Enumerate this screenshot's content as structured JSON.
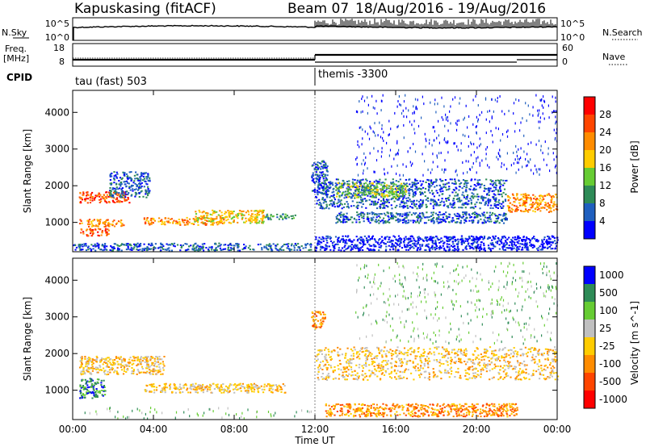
{
  "header": {
    "station": "Kapuskasing (fitACF)",
    "beam": "Beam 07",
    "date_range": "18/Aug/2016 - 19/Aug/2016"
  },
  "noise_panel": {
    "left_label": "N.Sky",
    "left_ticks": [
      "10^5",
      "10^0"
    ],
    "right_label": "N.Search",
    "right_ticks": [
      "10^5",
      "10^0"
    ]
  },
  "freq_panel": {
    "left_label_1": "Freq.",
    "left_label_2": "[MHz]",
    "left_ticks": [
      "18",
      "8"
    ],
    "right_label": "Nave",
    "right_ticks": [
      "60",
      "0"
    ]
  },
  "cpid": {
    "label": "CPID",
    "segments": [
      {
        "name": "tau (fast) 503",
        "start_hour": 0
      },
      {
        "name": "themis -3300",
        "start_hour": 12
      }
    ]
  },
  "colors": {
    "power": [
      "#0000ff",
      "#1f5fbf",
      "#2e8b57",
      "#66cc33",
      "#ffcc00",
      "#ff8c00",
      "#ff4500",
      "#ff0000"
    ],
    "velocity": [
      "#0000ff",
      "#2e8b57",
      "#66cc33",
      "#c0c0c0",
      "#ffcc00",
      "#ff8c00",
      "#ff4500",
      "#ff0000"
    ]
  },
  "chart_data": [
    {
      "type": "heatmap",
      "panel": "power",
      "ylabel": "Slant Range [km]",
      "yticks": [
        1000,
        2000,
        3000,
        4000
      ],
      "ylim": [
        200,
        4600
      ],
      "xlim": [
        0,
        24
      ],
      "colorbar_label": "Power [dB]",
      "colorbar_ticks": [
        "28",
        "24",
        "20",
        "16",
        "12",
        "8",
        "4"
      ],
      "regions": [
        {
          "x": [
            0.3,
            2.8
          ],
          "y": [
            1550,
            1850
          ],
          "level": 6
        },
        {
          "x": [
            0.3,
            2.5
          ],
          "y": [
            900,
            1100
          ],
          "level": 5
        },
        {
          "x": [
            0.3,
            1.8
          ],
          "y": [
            650,
            850
          ],
          "level": 6
        },
        {
          "x": [
            1.8,
            3.8
          ],
          "y": [
            1700,
            2400
          ],
          "level": 1
        },
        {
          "x": [
            3.5,
            7.5
          ],
          "y": [
            950,
            1150
          ],
          "level": 5
        },
        {
          "x": [
            6.0,
            9.5
          ],
          "y": [
            1000,
            1350
          ],
          "level": 4
        },
        {
          "x": [
            9.5,
            11.0
          ],
          "y": [
            1100,
            1250
          ],
          "level": 2
        },
        {
          "x": [
            0.0,
            11.8
          ],
          "y": [
            250,
            450
          ],
          "level": 1
        },
        {
          "x": [
            11.8,
            12.6
          ],
          "y": [
            1800,
            2700
          ],
          "level": 1
        },
        {
          "x": [
            12.0,
            21.5
          ],
          "y": [
            1400,
            2200
          ],
          "level": 1
        },
        {
          "x": [
            13.0,
            16.5
          ],
          "y": [
            1700,
            2100
          ],
          "level": 3
        },
        {
          "x": [
            13.0,
            21.5
          ],
          "y": [
            1000,
            1300
          ],
          "level": 1
        },
        {
          "x": [
            21.5,
            24.0
          ],
          "y": [
            1300,
            1800
          ],
          "level": 5
        },
        {
          "x": [
            12.0,
            24.0
          ],
          "y": [
            250,
            650
          ],
          "level": 0
        },
        {
          "x": [
            14.0,
            24.0
          ],
          "y": [
            2300,
            4500
          ],
          "level": 0,
          "sparse": true
        }
      ]
    },
    {
      "type": "heatmap",
      "panel": "velocity",
      "ylabel": "Slant Range [km]",
      "yticks": [
        1000,
        2000,
        3000,
        4000
      ],
      "ylim": [
        200,
        4600
      ],
      "xlim": [
        0,
        24
      ],
      "xlabel": "Time UT",
      "xticks": [
        "00:00",
        "04:00",
        "08:00",
        "12:00",
        "16:00",
        "20:00",
        "00:00"
      ],
      "colorbar_label": "Velocity [m s^-1]",
      "colorbar_ticks": [
        "1000",
        "500",
        "100",
        "25",
        "-25",
        "-100",
        "-500",
        "-1000"
      ],
      "regions": [
        {
          "x": [
            0.3,
            4.5
          ],
          "y": [
            1450,
            1950
          ],
          "level": 3
        },
        {
          "x": [
            0.3,
            1.6
          ],
          "y": [
            800,
            1350
          ],
          "level": 6
        },
        {
          "x": [
            3.5,
            10.5
          ],
          "y": [
            950,
            1200
          ],
          "level": 3
        },
        {
          "x": [
            0.5,
            11.8
          ],
          "y": [
            250,
            550
          ],
          "level": 5,
          "sparse": true
        },
        {
          "x": [
            12.0,
            24.0
          ],
          "y": [
            1300,
            2200
          ],
          "level": 3
        },
        {
          "x": [
            12.5,
            22.0
          ],
          "y": [
            300,
            650
          ],
          "level": 2
        },
        {
          "x": [
            11.8,
            12.5
          ],
          "y": [
            2700,
            3200
          ],
          "level": 2
        },
        {
          "x": [
            14.0,
            24.0
          ],
          "y": [
            2300,
            4500
          ],
          "level": 5,
          "sparse": true
        }
      ]
    }
  ]
}
